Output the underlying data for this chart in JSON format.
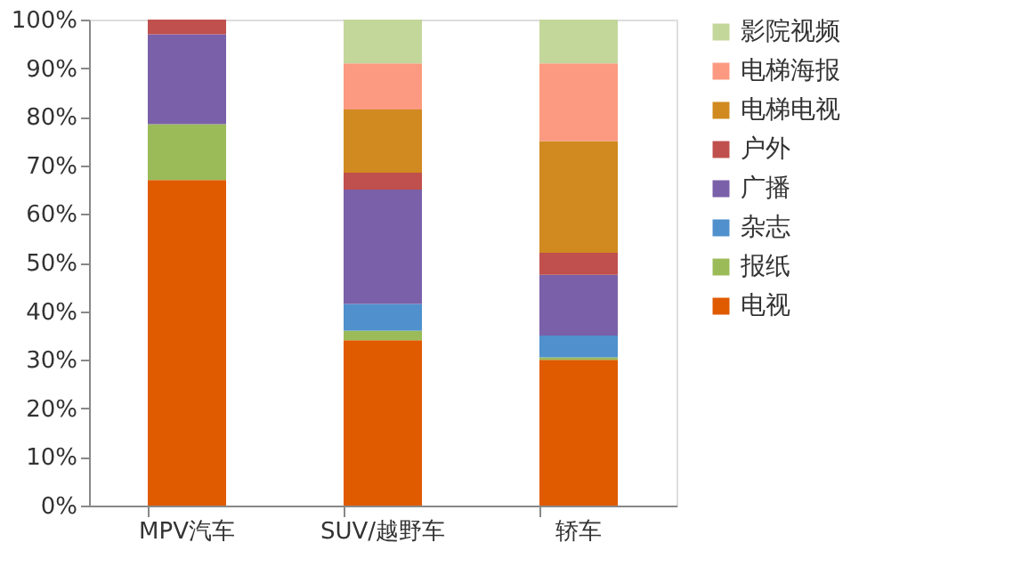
{
  "chart_data": {
    "type": "bar",
    "stacked": true,
    "categories": [
      "MPV汽车",
      "SUV/越野车",
      "轿车"
    ],
    "series": [
      {
        "name": "电视",
        "color": "#e05a00",
        "values": [
          67,
          34,
          30
        ]
      },
      {
        "name": "报纸",
        "color": "#9bbb59",
        "values": [
          11.5,
          2,
          0.5
        ]
      },
      {
        "name": "杂志",
        "color": "#4f90cd",
        "values": [
          0,
          5.5,
          4.5
        ]
      },
      {
        "name": "广播",
        "color": "#7a60a8",
        "values": [
          18.5,
          23.5,
          12.5
        ]
      },
      {
        "name": "户外",
        "color": "#c0504d",
        "values": [
          3,
          3.5,
          4.5
        ]
      },
      {
        "name": "电梯电视",
        "color": "#d08a20",
        "values": [
          0,
          13,
          23
        ]
      },
      {
        "name": "电梯海报",
        "color": "#fb9a80",
        "values": [
          0,
          9.5,
          16
        ]
      },
      {
        "name": "影院视频",
        "color": "#c4d79b",
        "values": [
          0,
          9,
          9
        ]
      }
    ],
    "ylim": [
      0,
      100
    ],
    "yticks": [
      {
        "value": 0,
        "label": "0%"
      },
      {
        "value": 10,
        "label": "10%"
      },
      {
        "value": 20,
        "label": "20%"
      },
      {
        "value": 30,
        "label": "30%"
      },
      {
        "value": 40,
        "label": "40%"
      },
      {
        "value": 50,
        "label": "50%"
      },
      {
        "value": 60,
        "label": "60%"
      },
      {
        "value": 70,
        "label": "70%"
      },
      {
        "value": 80,
        "label": "80%"
      },
      {
        "value": 90,
        "label": "90%"
      },
      {
        "value": 100,
        "label": "100%"
      }
    ],
    "grid": false,
    "legend": "right"
  }
}
